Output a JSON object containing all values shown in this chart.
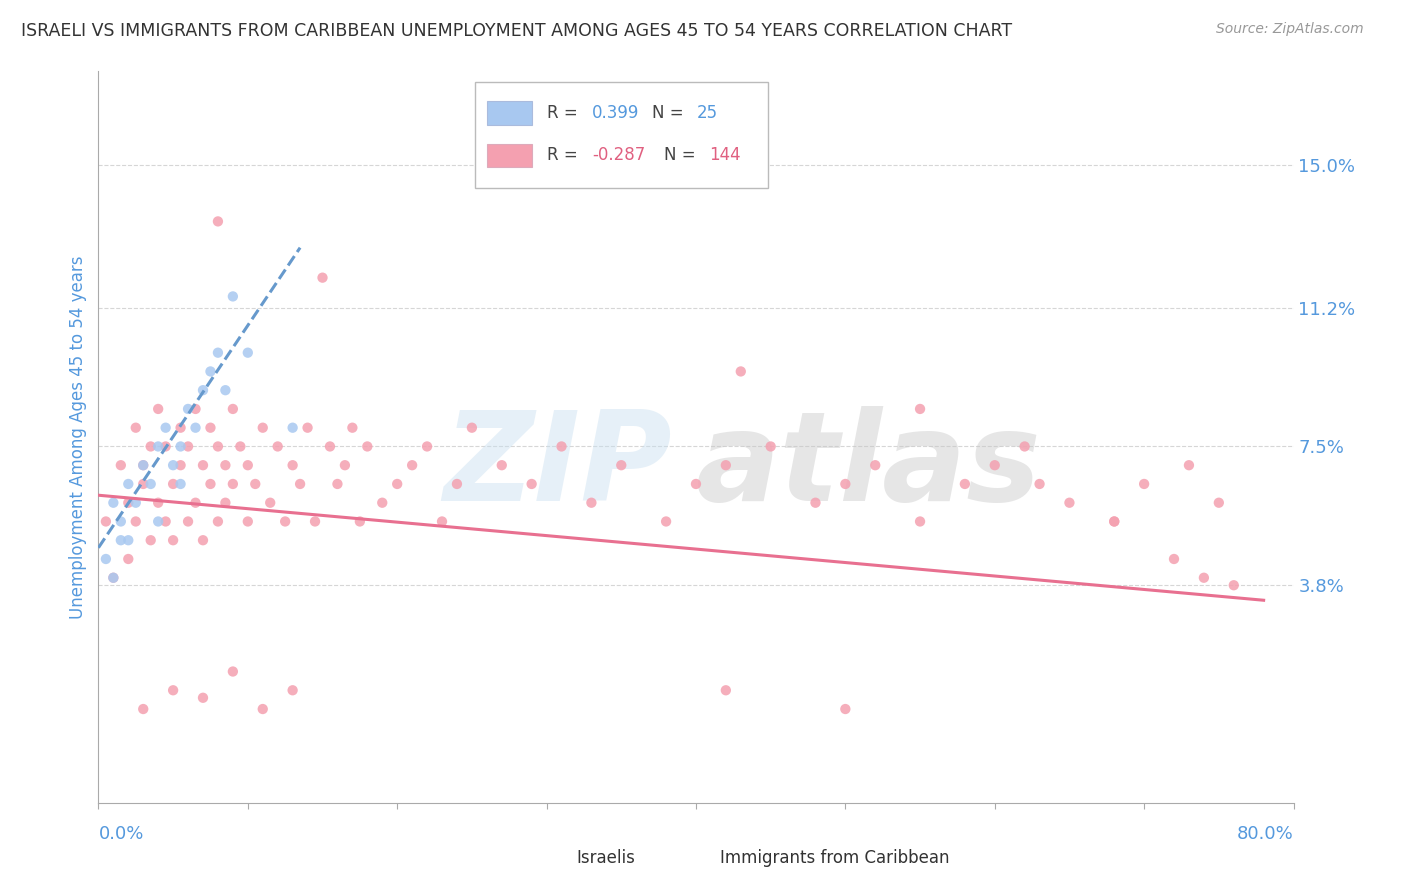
{
  "title": "ISRAELI VS IMMIGRANTS FROM CARIBBEAN UNEMPLOYMENT AMONG AGES 45 TO 54 YEARS CORRELATION CHART",
  "source": "Source: ZipAtlas.com",
  "ylabel": "Unemployment Among Ages 45 to 54 years",
  "xlim": [
    0.0,
    0.8
  ],
  "ylim": [
    -0.02,
    0.175
  ],
  "y_tick_positions": [
    0.038,
    0.075,
    0.112,
    0.15
  ],
  "y_tick_labels": [
    "3.8%",
    "7.5%",
    "11.2%",
    "15.0%"
  ],
  "grid_color": "#cccccc",
  "background_color": "#ffffff",
  "israeli_color": "#a8c8f0",
  "caribbean_color": "#f4a0b0",
  "israeli_line_color": "#6699cc",
  "caribbean_line_color": "#e87090",
  "legend_R1": "0.399",
  "legend_N1": "25",
  "legend_R2": "-0.287",
  "legend_N2": "144",
  "title_color": "#333333",
  "axis_label_color": "#5599dd",
  "watermark": "ZIPatlas",
  "isr_line_x": [
    0.0,
    0.135
  ],
  "isr_line_y": [
    0.048,
    0.128
  ],
  "carib_line_x": [
    0.0,
    0.78
  ],
  "carib_line_y": [
    0.062,
    0.034
  ],
  "israelis_x": [
    0.005,
    0.01,
    0.01,
    0.015,
    0.015,
    0.02,
    0.02,
    0.025,
    0.03,
    0.035,
    0.04,
    0.04,
    0.045,
    0.05,
    0.055,
    0.055,
    0.06,
    0.065,
    0.07,
    0.075,
    0.08,
    0.085,
    0.09,
    0.1,
    0.13
  ],
  "israelis_y": [
    0.045,
    0.06,
    0.04,
    0.055,
    0.05,
    0.065,
    0.05,
    0.06,
    0.07,
    0.065,
    0.075,
    0.055,
    0.08,
    0.07,
    0.075,
    0.065,
    0.085,
    0.08,
    0.09,
    0.095,
    0.1,
    0.09,
    0.115,
    0.1,
    0.08
  ],
  "caribbean_x": [
    0.005,
    0.01,
    0.015,
    0.02,
    0.02,
    0.025,
    0.025,
    0.03,
    0.03,
    0.035,
    0.035,
    0.04,
    0.04,
    0.045,
    0.045,
    0.05,
    0.05,
    0.055,
    0.055,
    0.06,
    0.06,
    0.065,
    0.065,
    0.07,
    0.07,
    0.075,
    0.075,
    0.08,
    0.08,
    0.085,
    0.085,
    0.09,
    0.09,
    0.095,
    0.1,
    0.1,
    0.105,
    0.11,
    0.115,
    0.12,
    0.125,
    0.13,
    0.135,
    0.14,
    0.145,
    0.15,
    0.155,
    0.16,
    0.165,
    0.17,
    0.175,
    0.18,
    0.19,
    0.2,
    0.21,
    0.22,
    0.23,
    0.24,
    0.25,
    0.27,
    0.29,
    0.31,
    0.33,
    0.35,
    0.38,
    0.4,
    0.42,
    0.45,
    0.48,
    0.5,
    0.52,
    0.55,
    0.58,
    0.6,
    0.62,
    0.65,
    0.68,
    0.7,
    0.73,
    0.75
  ],
  "caribbean_y": [
    0.055,
    0.04,
    0.07,
    0.06,
    0.045,
    0.08,
    0.055,
    0.065,
    0.07,
    0.05,
    0.075,
    0.06,
    0.085,
    0.055,
    0.075,
    0.065,
    0.05,
    0.07,
    0.08,
    0.055,
    0.075,
    0.06,
    0.085,
    0.05,
    0.07,
    0.065,
    0.08,
    0.055,
    0.075,
    0.06,
    0.07,
    0.065,
    0.085,
    0.075,
    0.055,
    0.07,
    0.065,
    0.08,
    0.06,
    0.075,
    0.055,
    0.07,
    0.065,
    0.08,
    0.055,
    0.12,
    0.075,
    0.065,
    0.07,
    0.08,
    0.055,
    0.075,
    0.06,
    0.065,
    0.07,
    0.075,
    0.055,
    0.065,
    0.08,
    0.07,
    0.065,
    0.075,
    0.06,
    0.07,
    0.055,
    0.065,
    0.07,
    0.075,
    0.06,
    0.065,
    0.07,
    0.055,
    0.065,
    0.07,
    0.075,
    0.06,
    0.055,
    0.065,
    0.07,
    0.06
  ]
}
